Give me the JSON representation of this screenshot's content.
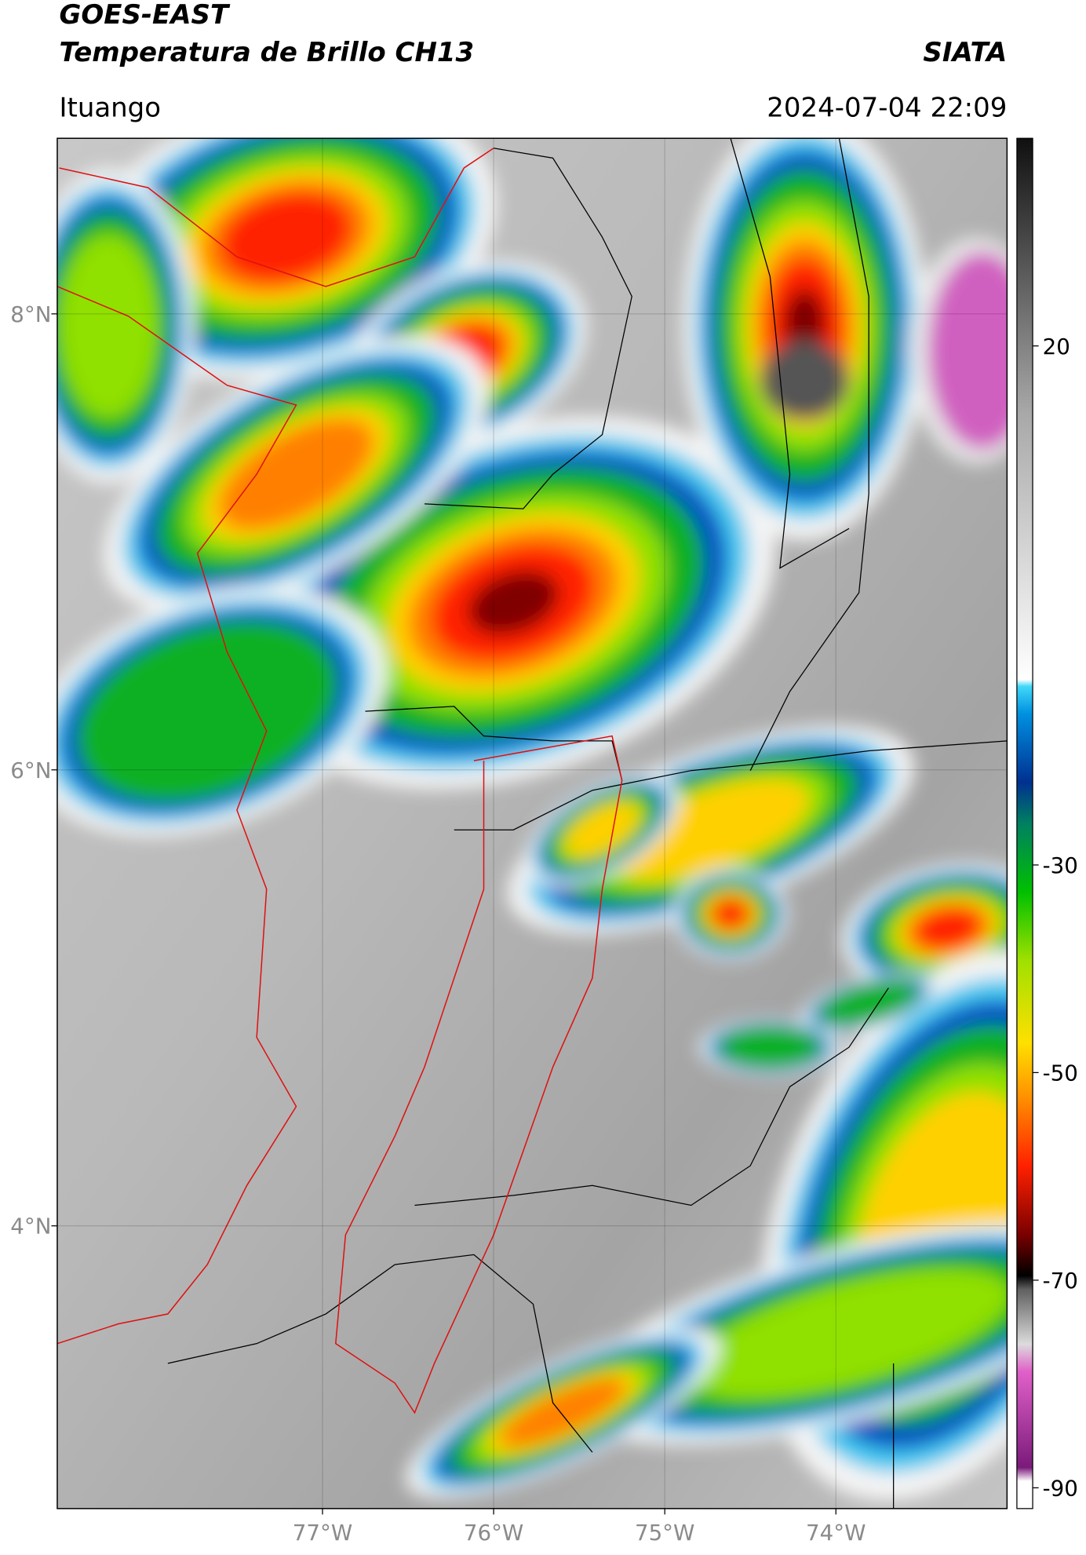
{
  "header": {
    "title": "GOES-EAST",
    "subtitle": "Temperatura de Brillo CH13",
    "org": "SIATA",
    "location": "Ituango",
    "datetime": "2024-07-04 22:09"
  },
  "map": {
    "xlim": [
      -78.55,
      -73.0
    ],
    "ylim": [
      2.76,
      8.77
    ],
    "xticks": [
      {
        "value": -77,
        "label": "77°W"
      },
      {
        "value": -76,
        "label": "76°W"
      },
      {
        "value": -75,
        "label": "75°W"
      },
      {
        "value": -74,
        "label": "74°W"
      }
    ],
    "yticks": [
      {
        "value": 4,
        "label": "4°N"
      },
      {
        "value": 6,
        "label": "6°N"
      },
      {
        "value": 8,
        "label": "8°N"
      }
    ]
  },
  "colorbar": {
    "lim": [
      -92,
      40
    ],
    "ticks": [
      -90,
      -70,
      -50,
      -30,
      20
    ]
  }
}
